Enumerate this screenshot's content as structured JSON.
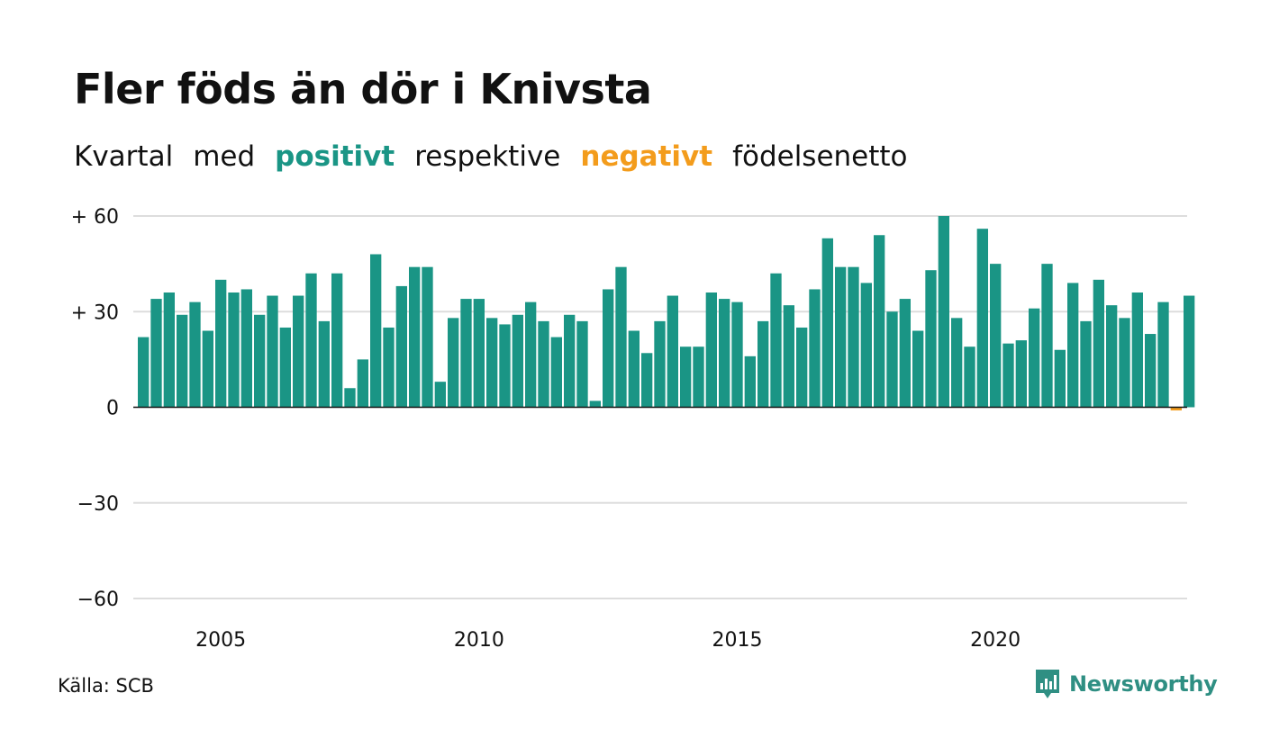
{
  "title": "Fler föds än dör i Knivsta",
  "subtitle": {
    "part1": "Kvartal",
    "part2": "med",
    "positive_word": "positivt",
    "part3": "respektive",
    "negative_word": "negativt",
    "part4": "födelsenetto"
  },
  "source": "Källa: SCB",
  "logo_text": "Newsworthy",
  "colors": {
    "positive": "#1a9585",
    "negative": "#f39c1c",
    "grid": "#dddddd",
    "logo": "#2f8f83"
  },
  "chart_data": {
    "type": "bar",
    "start": "2003 Q3",
    "frequency": "quarterly",
    "values": [
      22,
      34,
      36,
      29,
      33,
      24,
      40,
      36,
      37,
      29,
      35,
      25,
      35,
      42,
      27,
      42,
      6,
      15,
      48,
      25,
      38,
      44,
      44,
      8,
      28,
      34,
      34,
      28,
      26,
      29,
      33,
      27,
      22,
      29,
      27,
      2,
      37,
      44,
      24,
      17,
      27,
      35,
      19,
      19,
      36,
      34,
      33,
      16,
      27,
      42,
      32,
      25,
      37,
      53,
      44,
      44,
      39,
      54,
      30,
      34,
      24,
      43,
      60,
      28,
      19,
      56,
      45,
      20,
      21,
      31,
      45,
      18,
      39,
      27,
      40,
      32,
      28,
      36,
      23,
      33,
      -1,
      35
    ],
    "ylim": [
      -60,
      60
    ],
    "yticks": [
      {
        "value": 60,
        "label": "+ 60"
      },
      {
        "value": 30,
        "label": "+ 30"
      },
      {
        "value": 0,
        "label": "0"
      },
      {
        "value": -30,
        "label": "−30"
      },
      {
        "value": -60,
        "label": "−60"
      }
    ],
    "xticks": [
      "2005",
      "2010",
      "2015",
      "2020"
    ],
    "grid": true
  }
}
